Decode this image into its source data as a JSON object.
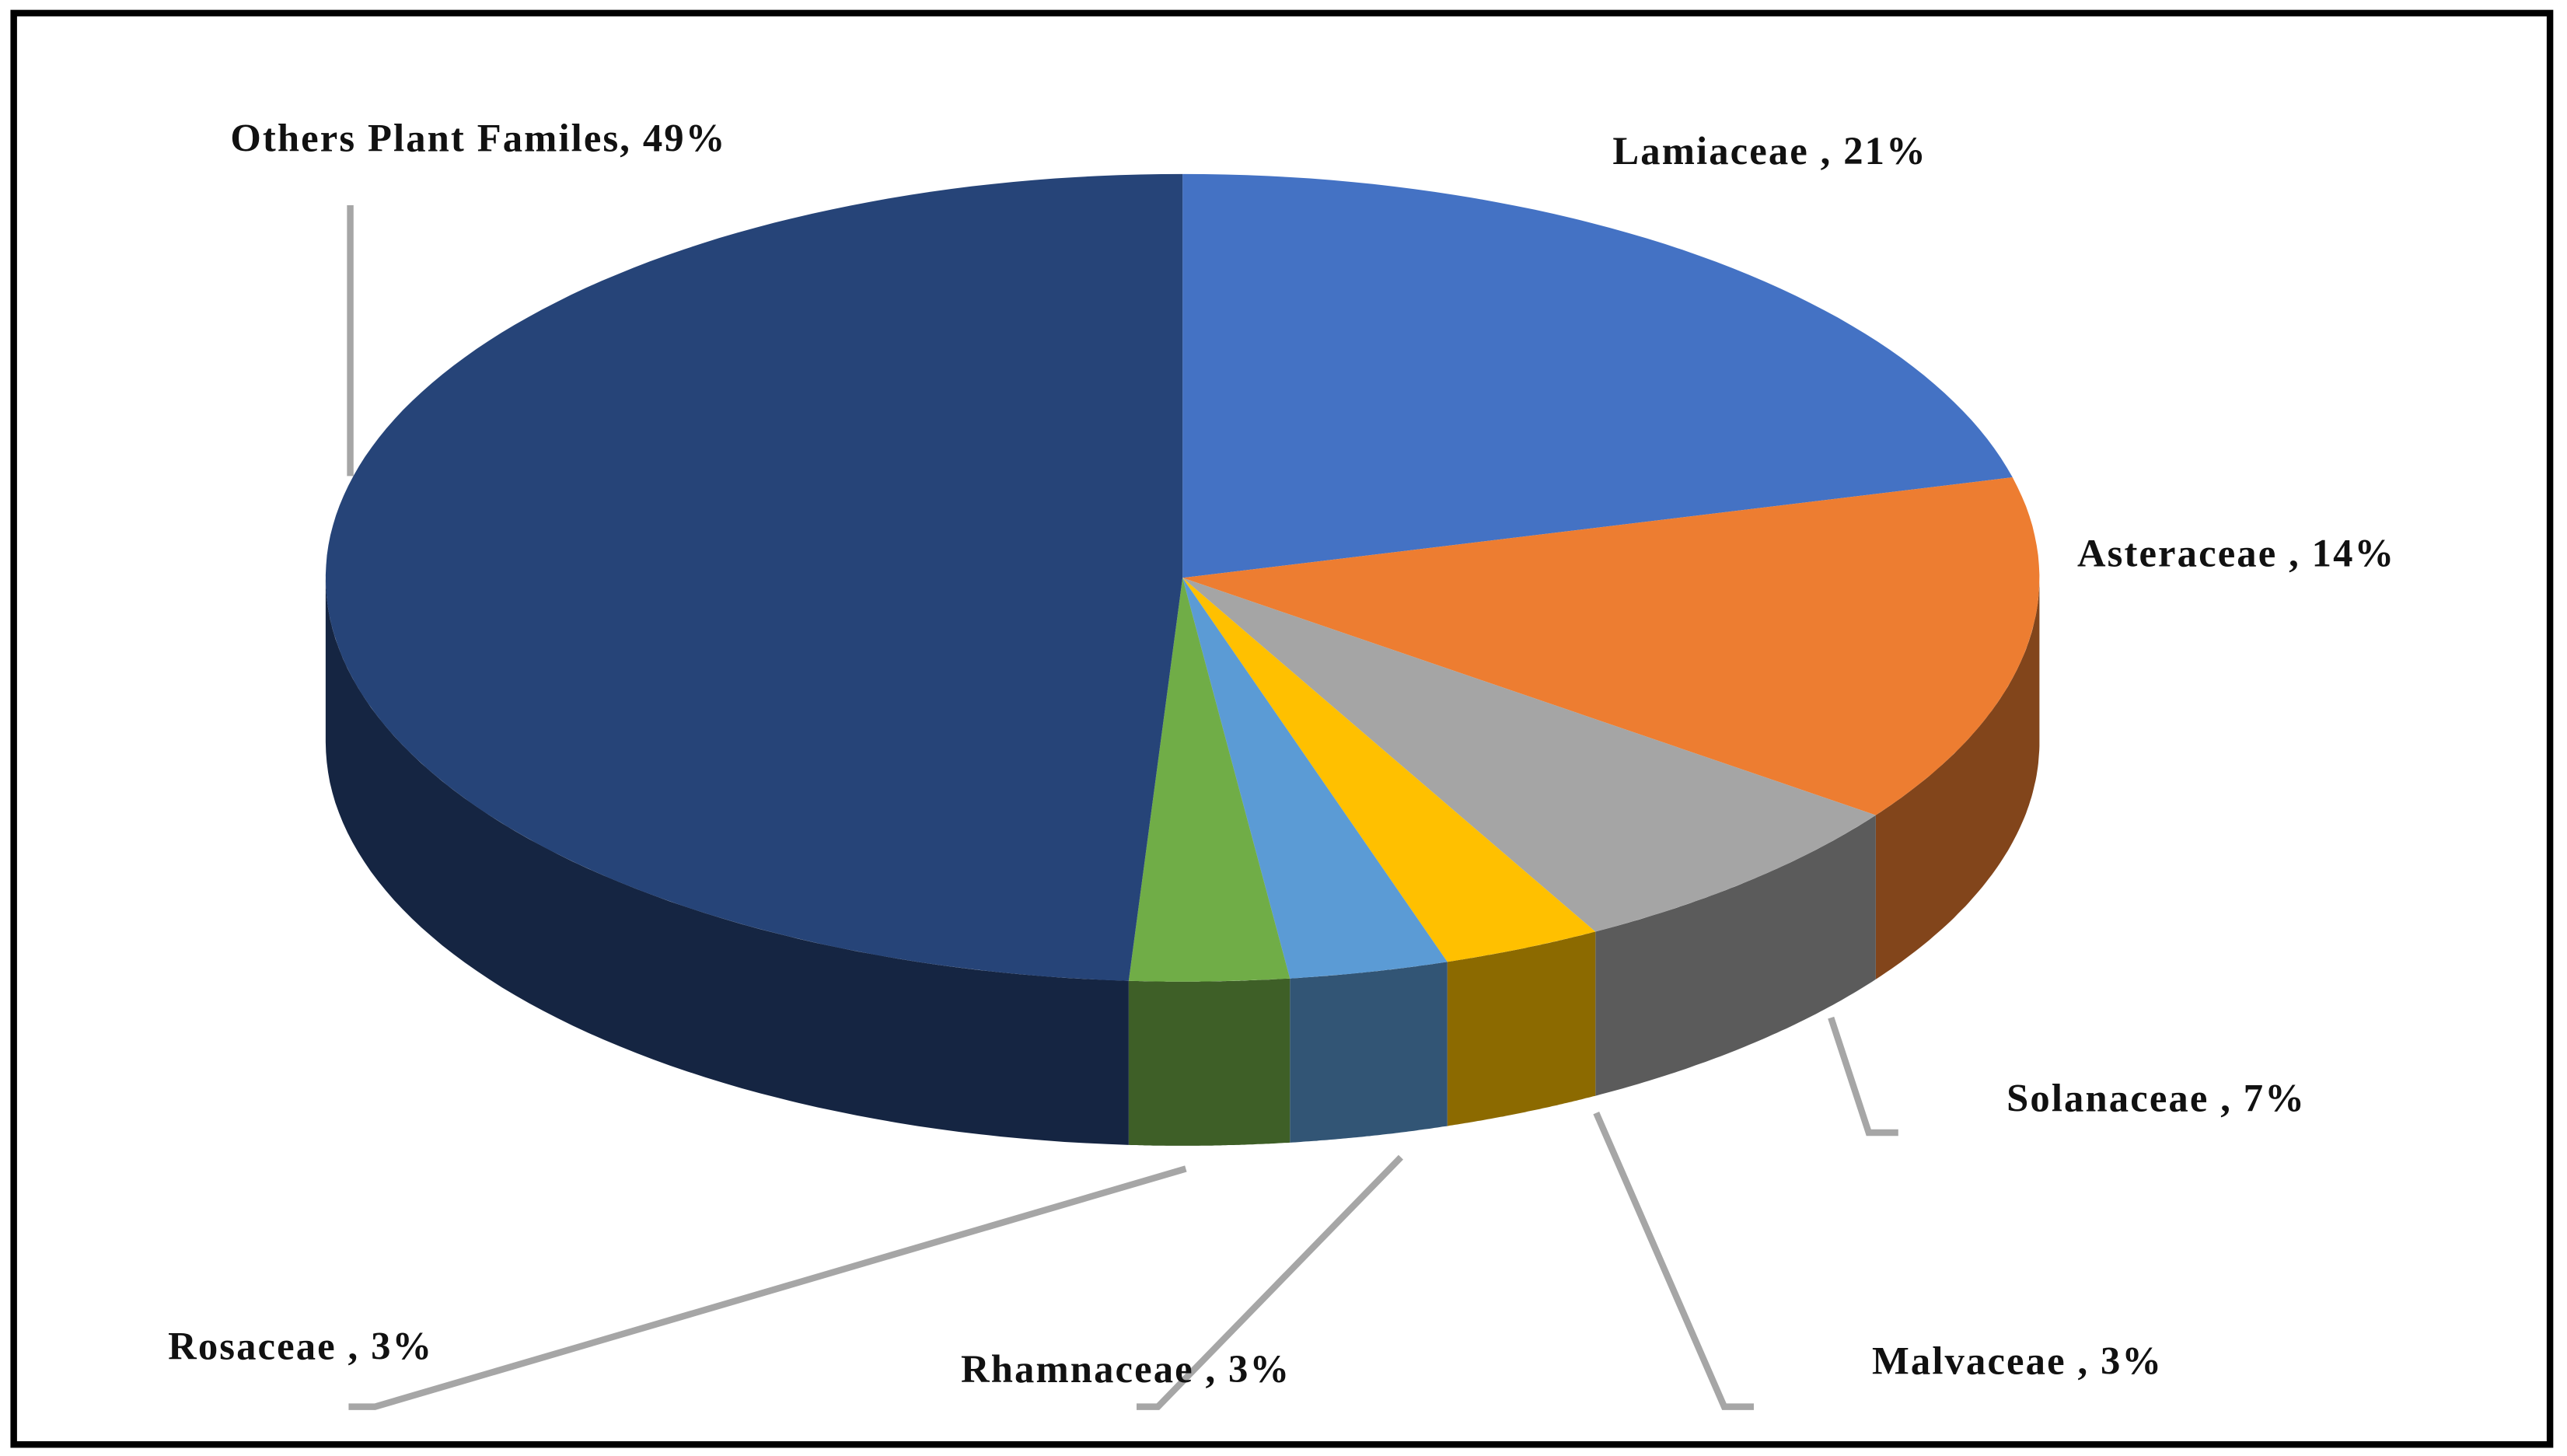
{
  "chart_data": {
    "type": "pie3d",
    "value_labels": [
      "Lamiaceae , 21%",
      "Asteraceae , 14%",
      "Solanaceae , 7%",
      "Malvaceae , 3%",
      "Rhamnaceae , 3%",
      "Rosaceae , 3%",
      "Others Plant Familes, 49%"
    ],
    "values": [
      21,
      14,
      7,
      3,
      3,
      3,
      49
    ],
    "colors": [
      "#4472c4",
      "#ed7d31",
      "#a5a5a5",
      "#ffc000",
      "#5b9bd5",
      "#70ad47",
      "#264478"
    ]
  }
}
